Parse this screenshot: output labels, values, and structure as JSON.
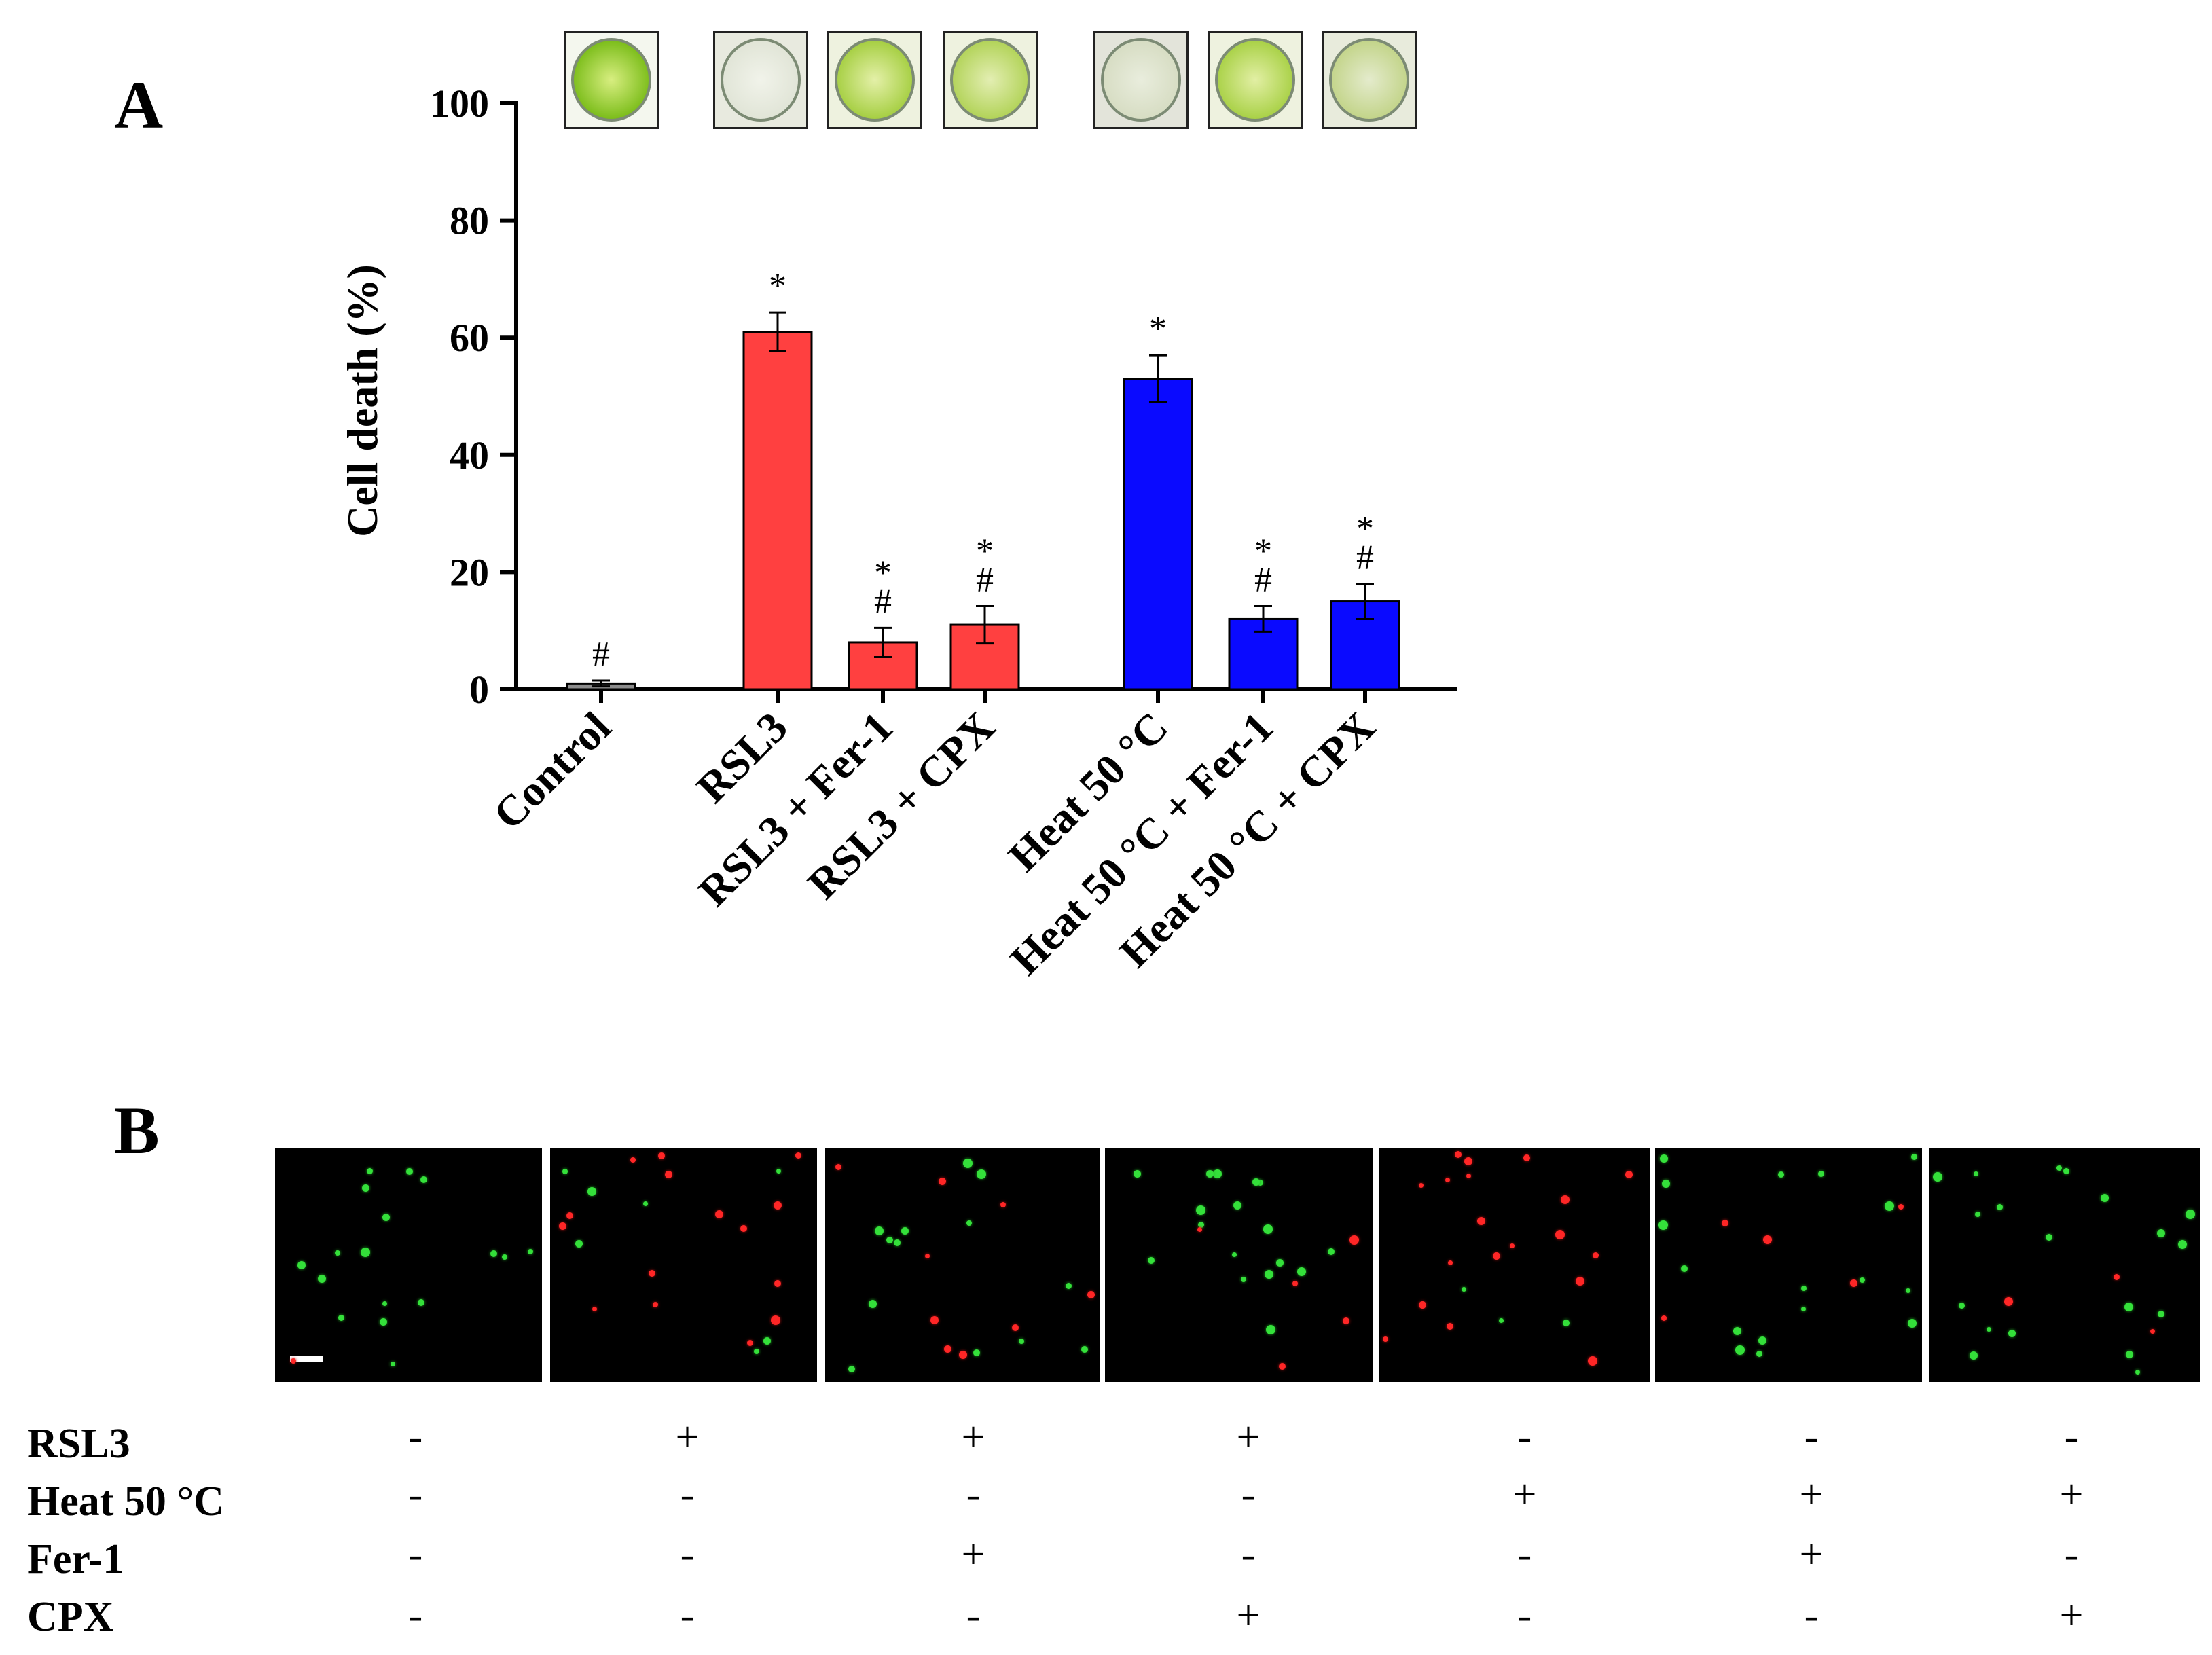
{
  "panel_a": {
    "letter": "A"
  },
  "panel_b": {
    "letter": "B"
  },
  "chart_data": {
    "type": "bar",
    "title": "",
    "xlabel": "",
    "ylabel": "Cell death (%)",
    "ylim": [
      0,
      100
    ],
    "yticks": [
      0,
      20,
      40,
      60,
      80,
      100
    ],
    "grid": false,
    "legend": "none",
    "categories": [
      "Control",
      "RSL3",
      "RSL3 + Fer-1",
      "RSL3 + CPX",
      "Heat 50 °C",
      "Heat 50 °C + Fer-1",
      "Heat 50 °C + CPX"
    ],
    "values": [
      1,
      61,
      8,
      11,
      53,
      12,
      15
    ],
    "errors": [
      0.5,
      3.3,
      2.5,
      3.2,
      4,
      2.2,
      3
    ],
    "annotations": [
      [
        "#"
      ],
      [
        "*"
      ],
      [
        "*",
        "#"
      ],
      [
        "*",
        "#"
      ],
      [
        "*"
      ],
      [
        "*",
        "#"
      ],
      [
        "*",
        "#"
      ]
    ],
    "colors": [
      "#8c8c8c",
      "#ff4040",
      "#ff4040",
      "#ff4040",
      "#0a0aff",
      "#0a0aff",
      "#0a0aff"
    ]
  },
  "treatment_table": {
    "rows": [
      {
        "label": "RSL3",
        "signs": [
          "-",
          "+",
          "+",
          "+",
          "-",
          "-",
          "-"
        ]
      },
      {
        "label": "Heat 50 °C",
        "signs": [
          "-",
          "-",
          "-",
          "-",
          "+",
          "+",
          "+"
        ]
      },
      {
        "label": "Fer-1",
        "signs": [
          "-",
          "-",
          "+",
          "-",
          "-",
          "+",
          "-"
        ]
      },
      {
        "label": "CPX",
        "signs": [
          "-",
          "-",
          "-",
          "+",
          "-",
          "-",
          "+"
        ]
      }
    ]
  }
}
